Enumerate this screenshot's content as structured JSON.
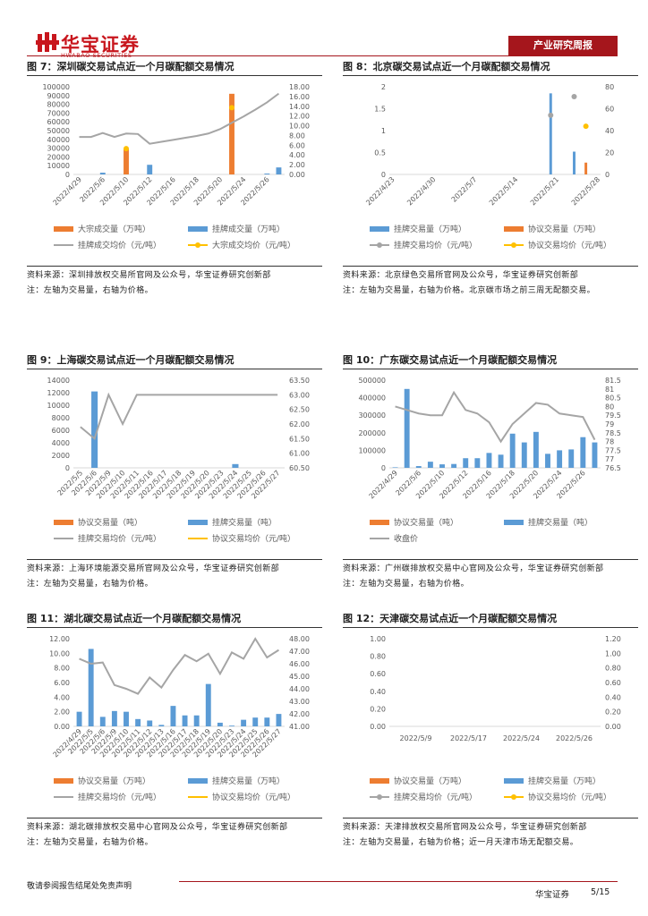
{
  "header": {
    "brand": "华宝证券",
    "brand_en": "HWABAO SECURITIES",
    "report_type": "产业研究周报"
  },
  "chart_data": [
    {
      "type": "combo",
      "title": "图 7：深圳碳交易试点近一个月碳配额交易情况",
      "categories": [
        "2022/4/29",
        null,
        "2022/5/6",
        null,
        "2022/5/10",
        null,
        "2022/5/12",
        null,
        "2022/5/16",
        null,
        "2022/5/18",
        null,
        "2022/5/20",
        null,
        "2022/5/24",
        null,
        "2022/5/26",
        null
      ],
      "ylim": [
        0,
        100000
      ],
      "yticks": [
        0,
        10000,
        20000,
        30000,
        40000,
        50000,
        60000,
        70000,
        80000,
        90000,
        100000
      ],
      "y2lim": [
        0,
        18
      ],
      "y2ticks": [
        {
          "value": 0,
          "label": "0.00"
        },
        {
          "value": 2,
          "label": "2.00"
        },
        {
          "value": 4,
          "label": "4.00"
        },
        {
          "value": 6,
          "label": "6.00"
        },
        {
          "value": 8,
          "label": "8.00"
        },
        {
          "value": 10,
          "label": "10.00"
        },
        {
          "value": 12,
          "label": "12.00"
        },
        {
          "value": 14,
          "label": "14.00"
        },
        {
          "value": 16,
          "label": "16.00"
        },
        {
          "value": 18,
          "label": "18.00"
        }
      ],
      "series": [
        {
          "name": "大宗成交量（万吨）",
          "type": "bar",
          "color": "#ED7D31",
          "values": [
            null,
            null,
            null,
            null,
            29000,
            null,
            null,
            null,
            null,
            null,
            null,
            null,
            null,
            92000,
            null,
            null,
            null,
            null
          ]
        },
        {
          "name": "挂牌成交量（万吨）",
          "type": "bar",
          "color": "#5B9BD5",
          "values": [
            null,
            null,
            2000,
            null,
            null,
            null,
            11000,
            null,
            null,
            null,
            null,
            null,
            null,
            null,
            null,
            null,
            1000,
            8000
          ]
        },
        {
          "name": "挂牌成交均价（元/吨）",
          "type": "line",
          "axis": "y2",
          "color": "#A5A5A5",
          "values": [
            7.7,
            7.7,
            8.5,
            7.7,
            8.4,
            8.3,
            6.3,
            6.7,
            7.1,
            7.5,
            7.9,
            8.4,
            9.3,
            10.6,
            11.9,
            13.3,
            14.8,
            16.6
          ]
        },
        {
          "name": "大宗成交均价（元/吨）",
          "type": "line",
          "axis": "y2",
          "color": "#FFC000",
          "marker": true,
          "values": [
            null,
            null,
            null,
            null,
            5.3,
            null,
            null,
            null,
            null,
            null,
            null,
            null,
            null,
            13.7,
            null,
            null,
            null,
            null
          ]
        }
      ]
    },
    {
      "type": "combo",
      "title": "图 8：北京碳交易试点近一个月碳配额交易情况",
      "categories": [
        "2022/4/23",
        null,
        null,
        null,
        null,
        null,
        null,
        "2022/4/30",
        null,
        null,
        null,
        null,
        null,
        null,
        "2022/5/7",
        null,
        null,
        null,
        null,
        null,
        null,
        "2022/5/14",
        null,
        null,
        null,
        null,
        null,
        null,
        "2022/5/21",
        null,
        null,
        null,
        null,
        null,
        null,
        "2022/5/28"
      ],
      "ylim": [
        0,
        2
      ],
      "yticks": [
        0,
        0.5,
        1,
        1.5,
        2
      ],
      "y2lim": [
        0,
        80
      ],
      "y2ticks": [
        0,
        20,
        40,
        60,
        80
      ],
      "series": [
        {
          "name": "挂牌交易量（万吨）",
          "type": "bar",
          "color": "#5B9BD5",
          "values": [
            null,
            null,
            null,
            null,
            null,
            null,
            null,
            null,
            null,
            null,
            null,
            null,
            null,
            null,
            null,
            null,
            null,
            null,
            null,
            null,
            null,
            null,
            null,
            null,
            null,
            null,
            null,
            1.85,
            null,
            null,
            null,
            0.52,
            null,
            null,
            null,
            null
          ]
        },
        {
          "name": "协议交易量（万吨）",
          "type": "bar",
          "color": "#ED7D31",
          "values": [
            null,
            null,
            null,
            null,
            null,
            null,
            null,
            null,
            null,
            null,
            null,
            null,
            null,
            null,
            null,
            null,
            null,
            null,
            null,
            null,
            null,
            null,
            null,
            null,
            null,
            null,
            null,
            null,
            null,
            null,
            null,
            null,
            null,
            0.27,
            null,
            null
          ]
        },
        {
          "name": "挂牌交易均价（元/吨）",
          "type": "line",
          "axis": "y2",
          "color": "#A5A5A5",
          "marker": true,
          "values": [
            null,
            null,
            null,
            null,
            null,
            null,
            null,
            null,
            null,
            null,
            null,
            null,
            null,
            null,
            null,
            null,
            null,
            null,
            null,
            null,
            null,
            null,
            null,
            null,
            null,
            null,
            null,
            54,
            null,
            null,
            null,
            71,
            null,
            null,
            null,
            null
          ]
        },
        {
          "name": "协议交易均价（元/吨）",
          "type": "line",
          "axis": "y2",
          "color": "#FFC000",
          "marker": true,
          "values": [
            null,
            null,
            null,
            null,
            null,
            null,
            null,
            null,
            null,
            null,
            null,
            null,
            null,
            null,
            null,
            null,
            null,
            null,
            null,
            null,
            null,
            null,
            null,
            null,
            null,
            null,
            null,
            null,
            null,
            null,
            null,
            null,
            null,
            44,
            null,
            null
          ]
        }
      ]
    },
    {
      "type": "combo",
      "title": "图 9：上海碳交易试点近一个月碳配额交易情况",
      "categories": [
        "2022/5/5",
        "2022/5/6",
        "2022/5/9",
        "2022/5/10",
        "2022/5/11",
        "2022/5/16",
        "2022/5/17",
        "2022/5/18",
        "2022/5/19",
        "2022/5/20",
        "2022/5/23",
        "2022/5/24",
        "2022/5/25",
        "2022/5/26",
        "2022/5/27"
      ],
      "ylim": [
        0,
        14000
      ],
      "yticks": [
        0,
        2000,
        4000,
        6000,
        8000,
        10000,
        12000,
        14000
      ],
      "y2lim": [
        60.5,
        63.5
      ],
      "y2ticks": [
        {
          "value": 60.5,
          "label": "60.50"
        },
        {
          "value": 61,
          "label": "61.00"
        },
        {
          "value": 61.5,
          "label": "61.50"
        },
        {
          "value": 62,
          "label": "62.00"
        },
        {
          "value": 62.5,
          "label": "62.50"
        },
        {
          "value": 63,
          "label": "63.00"
        },
        {
          "value": 63.5,
          "label": "63.50"
        }
      ],
      "series": [
        {
          "name": "协议交易量（吨）",
          "type": "bar",
          "color": "#ED7D31",
          "values": [
            null,
            null,
            null,
            null,
            null,
            null,
            null,
            null,
            null,
            null,
            null,
            null,
            null,
            null,
            null
          ]
        },
        {
          "name": "挂牌交易量（吨）",
          "type": "bar",
          "color": "#5B9BD5",
          "values": [
            null,
            12200,
            null,
            null,
            null,
            null,
            null,
            null,
            null,
            null,
            null,
            600,
            null,
            null,
            null
          ]
        },
        {
          "name": "挂牌交易均价（元/吨）",
          "type": "line",
          "axis": "y2",
          "color": "#A5A5A5",
          "values": [
            61.9,
            61.5,
            63,
            62,
            63,
            63,
            63,
            63,
            63,
            63,
            63,
            63,
            63,
            63,
            63
          ]
        },
        {
          "name": "协议交易均价（元/吨）",
          "type": "line",
          "axis": "y2",
          "color": "#FFC000",
          "values": [
            null,
            null,
            null,
            null,
            null,
            null,
            null,
            null,
            null,
            null,
            null,
            null,
            null,
            null,
            null
          ]
        }
      ]
    },
    {
      "type": "combo",
      "title": "图 10：广东碳交易试点近一个月碳配额交易情况",
      "categories": [
        "2022/4/29",
        null,
        "2022/5/6",
        null,
        "2022/5/10",
        null,
        "2022/5/12",
        null,
        "2022/5/16",
        null,
        "2022/5/18",
        null,
        "2022/5/20",
        null,
        "2022/5/24",
        null,
        "2022/5/26",
        null
      ],
      "ylim": [
        0,
        500000
      ],
      "yticks": [
        0,
        100000,
        200000,
        300000,
        400000,
        500000
      ],
      "y2lim": [
        76.5,
        81.5
      ],
      "y2ticks": [
        76.5,
        77,
        77.5,
        78,
        78.5,
        79,
        79.5,
        80,
        80.5,
        81,
        81.5
      ],
      "series": [
        {
          "name": "协议交易量（吨）",
          "type": "bar",
          "color": "#ED7D31",
          "values": [
            null,
            null,
            null,
            null,
            null,
            null,
            null,
            null,
            null,
            null,
            null,
            null,
            null,
            null,
            null,
            null,
            null,
            null
          ]
        },
        {
          "name": "挂牌交易量（吨）",
          "type": "bar",
          "color": "#5B9BD5",
          "values": [
            3000,
            450000,
            10000,
            35000,
            20000,
            22000,
            55000,
            55000,
            85000,
            75000,
            195000,
            145000,
            205000,
            80000,
            100000,
            105000,
            175000,
            145000
          ]
        },
        {
          "name": "收盘价",
          "type": "line",
          "axis": "y2",
          "color": "#A5A5A5",
          "values": [
            80.0,
            79.8,
            79.6,
            79.5,
            79.5,
            80.8,
            79.8,
            79.6,
            79.1,
            78.0,
            79.0,
            79.6,
            80.2,
            80.1,
            79.6,
            79.5,
            79.4,
            78.1
          ]
        }
      ]
    },
    {
      "type": "combo",
      "title": "图 11：湖北碳交易试点近一个月碳配额交易情况",
      "categories": [
        "2022/4/29",
        "2022/5/5",
        "2022/5/6",
        "2022/5/9",
        "2022/5/10",
        "2022/5/11",
        "2022/5/12",
        "2022/5/13",
        "2022/5/16",
        "2022/5/17",
        "2022/5/18",
        "2022/5/19",
        "2022/5/20",
        "2022/5/23",
        "2022/5/24",
        "2022/5/25",
        "2022/5/26",
        "2022/5/27"
      ],
      "ylim": [
        0,
        12
      ],
      "yticks": [
        {
          "value": 0,
          "label": "0.00"
        },
        {
          "value": 2,
          "label": "2.00"
        },
        {
          "value": 4,
          "label": "4.00"
        },
        {
          "value": 6,
          "label": "6.00"
        },
        {
          "value": 8,
          "label": "8.00"
        },
        {
          "value": 10,
          "label": "10.00"
        },
        {
          "value": 12,
          "label": "12.00"
        }
      ],
      "y2lim": [
        41,
        48
      ],
      "y2ticks": [
        {
          "value": 41,
          "label": "41.00"
        },
        {
          "value": 42,
          "label": "42.00"
        },
        {
          "value": 43,
          "label": "43.00"
        },
        {
          "value": 44,
          "label": "44.00"
        },
        {
          "value": 45,
          "label": "45.00"
        },
        {
          "value": 46,
          "label": "46.00"
        },
        {
          "value": 47,
          "label": "47.00"
        },
        {
          "value": 48,
          "label": "48.00"
        }
      ],
      "series": [
        {
          "name": "协议交易量（万吨）",
          "type": "bar",
          "color": "#ED7D31",
          "values": [
            null,
            null,
            null,
            null,
            null,
            null,
            null,
            null,
            null,
            null,
            null,
            null,
            null,
            null,
            null,
            null,
            null,
            null
          ]
        },
        {
          "name": "挂牌交易量（万吨）",
          "type": "bar",
          "color": "#5B9BD5",
          "values": [
            2.0,
            10.6,
            1.3,
            2.1,
            2.0,
            1.0,
            0.8,
            0.2,
            2.8,
            1.5,
            1.5,
            5.8,
            0.5,
            0.1,
            0.9,
            1.2,
            1.2,
            1.7
          ]
        },
        {
          "name": "挂牌交易均价（元/吨）",
          "type": "line",
          "axis": "y2",
          "color": "#A5A5A5",
          "values": [
            46.4,
            46.0,
            46.1,
            44.3,
            44.0,
            43.6,
            44.9,
            44.1,
            45.5,
            46.7,
            46.2,
            46.8,
            45.2,
            46.9,
            46.4,
            48.0,
            46.5,
            47.1
          ]
        },
        {
          "name": "协议交易均价（元/吨）",
          "type": "line",
          "axis": "y2",
          "color": "#FFC000",
          "values": [
            null,
            null,
            null,
            null,
            null,
            null,
            null,
            null,
            null,
            null,
            null,
            null,
            null,
            null,
            null,
            null,
            null,
            null
          ]
        }
      ]
    },
    {
      "type": "combo",
      "title": "图 12：天津碳交易试点近一个月碳配额交易情况",
      "categories": [
        "2022/5/9",
        "2022/5/17",
        "2022/5/24",
        "2022/5/26"
      ],
      "ylim": [
        0,
        1
      ],
      "yticks": [
        {
          "value": 0,
          "label": "0.00"
        },
        {
          "value": 0.2,
          "label": "0.20"
        },
        {
          "value": 0.4,
          "label": "0.40"
        },
        {
          "value": 0.6,
          "label": "0.60"
        },
        {
          "value": 0.8,
          "label": "0.80"
        },
        {
          "value": 1,
          "label": "1.00"
        }
      ],
      "y2lim": [
        0,
        1.2
      ],
      "y2ticks": [
        {
          "value": 0,
          "label": "0.00"
        },
        {
          "value": 0.2,
          "label": "0.20"
        },
        {
          "value": 0.4,
          "label": "0.40"
        },
        {
          "value": 0.6,
          "label": "0.60"
        },
        {
          "value": 0.8,
          "label": "0.80"
        },
        {
          "value": 1,
          "label": "1.00"
        },
        {
          "value": 1.2,
          "label": "1.20"
        }
      ],
      "series": [
        {
          "name": "协议交易量（万吨）",
          "type": "bar",
          "color": "#ED7D31",
          "values": [
            null,
            null,
            null,
            null
          ]
        },
        {
          "name": "挂牌交易量（万吨）",
          "type": "bar",
          "color": "#5B9BD5",
          "values": [
            null,
            null,
            null,
            null
          ]
        },
        {
          "name": "挂牌交易均价（元/吨）",
          "type": "line",
          "axis": "y2",
          "color": "#A5A5A5",
          "marker": true,
          "values": [
            null,
            null,
            null,
            null
          ]
        },
        {
          "name": "协议交易均价（元/吨）",
          "type": "line",
          "axis": "y2",
          "color": "#FFC000",
          "marker": true,
          "values": [
            null,
            null,
            null,
            null
          ]
        }
      ]
    }
  ],
  "notes": [
    {
      "source": "资料来源：深圳排放权交易所官网及公众号，华宝证券研究创新部",
      "note": "注：左轴为交易量，右轴为价格。"
    },
    {
      "source": "资料来源：北京绿色交易所官网及公众号，华宝证券研究创新部",
      "note": "注：左轴为交易量，右轴为价格。北京碳市场之前三周无配额交易。"
    },
    {
      "source": "资料来源：上海环境能源交易所官网及公众号，华宝证券研究创新部",
      "note": "注：左轴为交易量，右轴为价格。"
    },
    {
      "source": "资料来源：广州碳排放权交易中心官网及公众号，华宝证券研究创新部",
      "note": "注：左轴为交易量，右轴为价格。"
    },
    {
      "source": "资料来源：湖北碳排放权交易中心官网及公众号，华宝证券研究创新部",
      "note": "注：左轴为交易量，右轴为价格。"
    },
    {
      "source": "资料来源：天津排放权交易所官网及公众号，华宝证券研究创新部",
      "note": "注：左轴为交易量，右轴为价格；近一月天津市场无配额交易。"
    }
  ],
  "footer": {
    "disclaimer": "敬请参阅报告结尾处免责声明",
    "brand": "华宝证券",
    "page": "5/15"
  }
}
